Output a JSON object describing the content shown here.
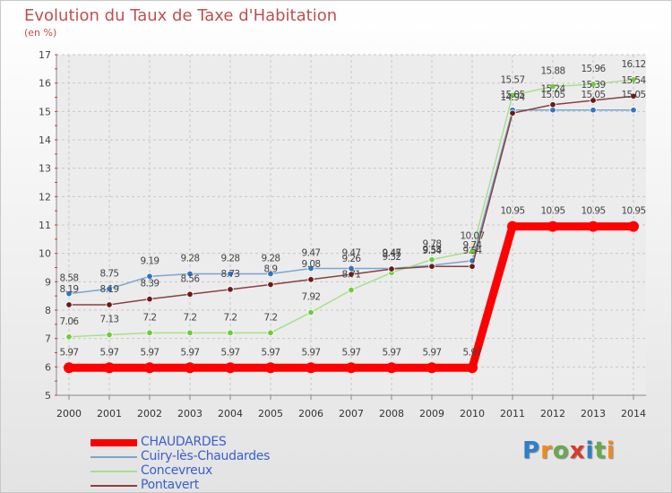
{
  "title": "Evolution du Taux de Taxe d'Habitation",
  "unit": "(en %)",
  "logo": {
    "letters": [
      "P",
      "r",
      "o",
      "x",
      "i",
      "t",
      "i"
    ],
    "colors": [
      "#2e7fc9",
      "#ef8b1c",
      "#6aa84f",
      "#d93a2b",
      "#2e7fc9",
      "#6aa84f",
      "#ef8b1c"
    ]
  },
  "chart_data": {
    "type": "line",
    "title": "Evolution du Taux de Taxe d'Habitation",
    "ylabel": "(en %)",
    "xlabel": "",
    "ylim": [
      5,
      17
    ],
    "yticks": [
      "5",
      "6",
      "7",
      "8",
      "9",
      "10",
      "11",
      "12",
      "13",
      "14",
      "15",
      "16",
      "17"
    ],
    "categories": [
      "2000",
      "2001",
      "2002",
      "2003",
      "2004",
      "2005",
      "2006",
      "2007",
      "2008",
      "2009",
      "2010",
      "2011",
      "2012",
      "2013",
      "2014"
    ],
    "grid": true,
    "legend_position": "bottom-left",
    "series": [
      {
        "name": "CHAUDARDES",
        "color": "#ff0000",
        "marker_color": "#ff0000",
        "thick": true,
        "values": [
          5.97,
          5.97,
          5.97,
          5.97,
          5.97,
          5.97,
          5.97,
          5.97,
          5.97,
          5.97,
          5.97,
          10.95,
          10.95,
          10.95,
          10.95
        ],
        "labels": [
          "5.97",
          "5.97",
          "5.97",
          "5.97",
          "5.97",
          "5.97",
          "5.97",
          "5.97",
          "5.97",
          "5.97",
          "5.97",
          "10.95",
          "10.95",
          "10.95",
          "10.95"
        ]
      },
      {
        "name": "Cuiry-lès-Chaudardes",
        "color": "#7aa6d0",
        "marker_color": "#2e75c9",
        "thick": false,
        "values": [
          8.58,
          8.75,
          9.19,
          9.28,
          9.28,
          9.28,
          9.47,
          9.47,
          9.47,
          9.58,
          9.74,
          15.05,
          15.05,
          15.05,
          15.05
        ],
        "labels": [
          "8.58",
          "8.75",
          "9.19",
          "9.28",
          "9.28",
          "9.28",
          "9.47",
          "9.47",
          "9.47",
          "9.58",
          "9.74",
          "15.05",
          "15.05",
          "15.05",
          "15.05"
        ]
      },
      {
        "name": "Concevreux",
        "color": "#a8e08a",
        "marker_color": "#6ccc3a",
        "thick": false,
        "values": [
          7.06,
          7.13,
          7.2,
          7.2,
          7.2,
          7.2,
          7.92,
          8.71,
          9.32,
          9.78,
          10.07,
          15.57,
          15.88,
          15.96,
          16.12
        ],
        "labels": [
          "7.06",
          "7.13",
          "7.2",
          "7.2",
          "7.2",
          "7.2",
          "7.92",
          "8.71",
          "9.32",
          "9.78",
          "10.07",
          "15.57",
          "15.88",
          "15.96",
          "16.12"
        ]
      },
      {
        "name": "Pontavert",
        "color": "#8a4040",
        "marker_color": "#6b1a1a",
        "thick": false,
        "values": [
          8.19,
          8.19,
          8.39,
          8.56,
          8.73,
          8.9,
          9.08,
          9.26,
          9.45,
          9.54,
          9.54,
          14.94,
          15.24,
          15.39,
          15.54
        ],
        "labels": [
          "8.19",
          "8.19",
          "8.39",
          "8.56",
          "8.73",
          "8.9",
          "9.08",
          "9.26",
          "9.45",
          "9.54",
          "9.54",
          "14.94",
          "15.24",
          "15.39",
          "15.54"
        ]
      }
    ]
  }
}
